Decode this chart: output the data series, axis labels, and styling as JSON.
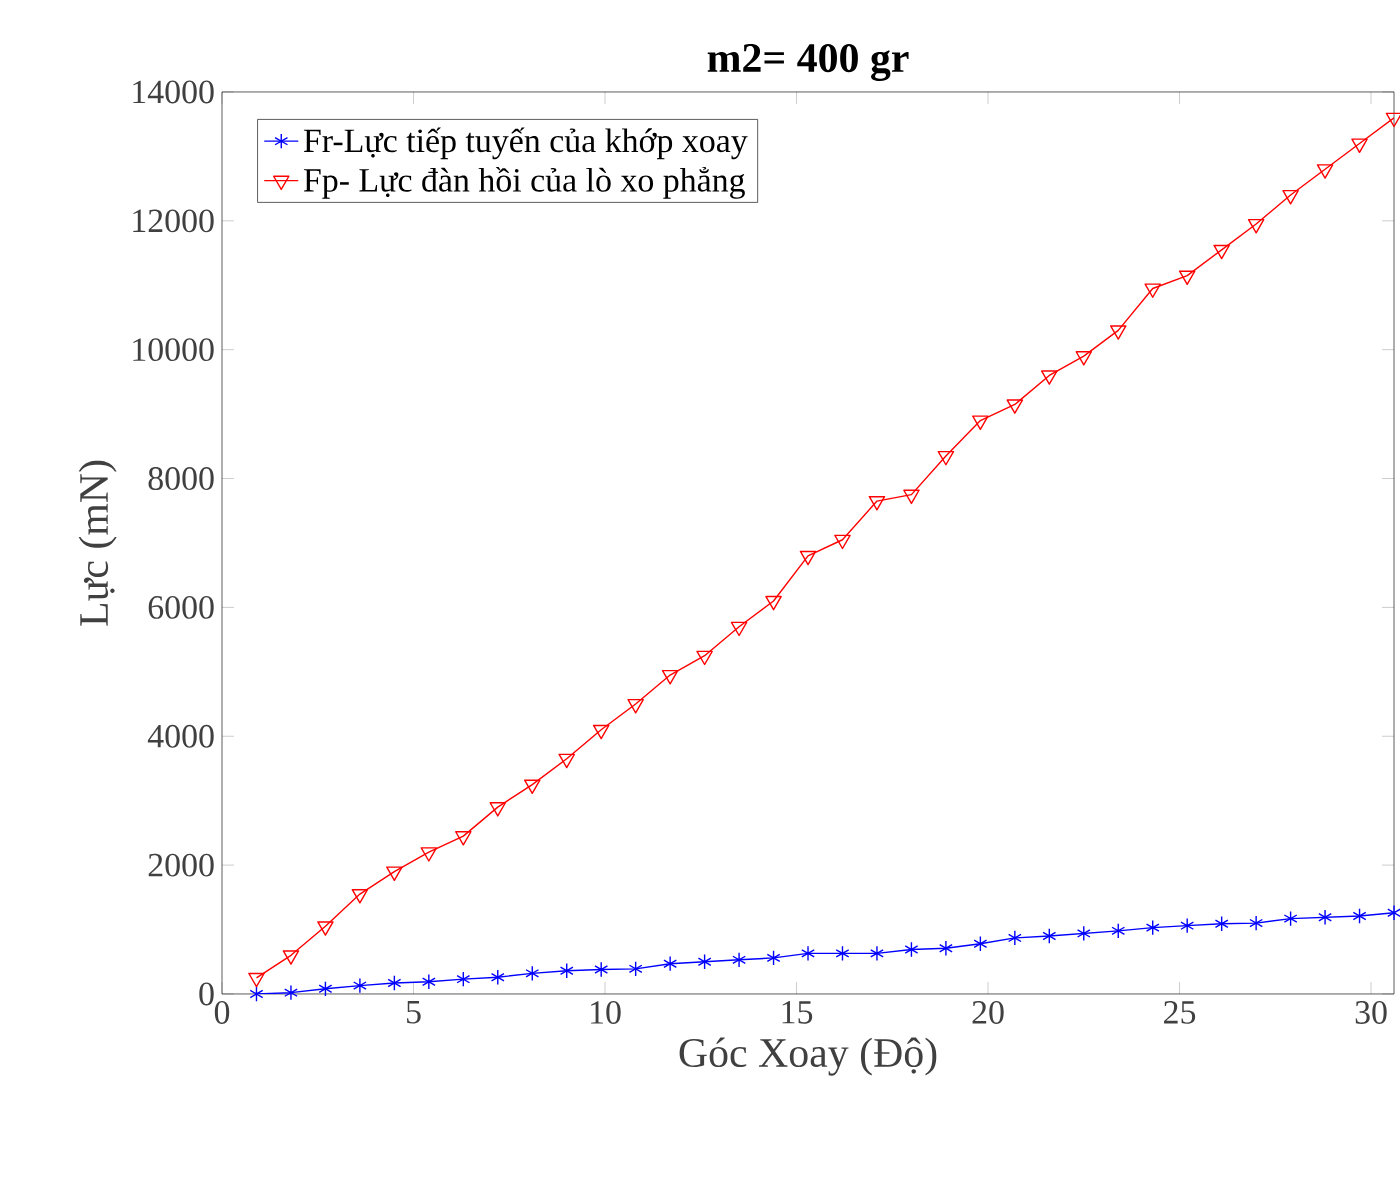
{
  "chart_data": {
    "type": "line",
    "title": "**m2= 400 gr**",
    "xlabel": "Góc Xoay (Độ)",
    "ylabel": "Lực (mN)",
    "x": [
      0.9,
      1.8,
      2.7,
      3.6,
      4.5,
      5.4,
      6.3,
      7.2,
      8.1,
      9.0,
      9.9,
      10.8,
      11.7,
      12.6,
      13.5,
      14.4,
      15.3,
      16.2,
      17.1,
      18.0,
      18.9,
      19.8,
      20.7,
      21.6,
      22.5,
      23.4,
      24.3,
      25.2,
      26.1,
      27.0,
      27.9,
      28.8,
      29.7,
      30.6
    ],
    "series": [
      {
        "name": "Fr-Lực tiếp tuyến của khớp xoay",
        "color": "#0000ff",
        "marker": "cross",
        "values": [
          0,
          20,
          80,
          130,
          170,
          190,
          230,
          260,
          320,
          360,
          380,
          390,
          470,
          500,
          530,
          560,
          630,
          630,
          630,
          690,
          710,
          780,
          870,
          900,
          940,
          980,
          1030,
          1060,
          1090,
          1100,
          1170,
          1190,
          1210,
          1260
        ]
      },
      {
        "name": "Fp- Lực đàn hồi của lò xo phẳng",
        "color": "#ff0000",
        "marker": "triangle",
        "values": [
          250,
          600,
          1050,
          1550,
          1900,
          2200,
          2450,
          2900,
          3250,
          3650,
          4100,
          4500,
          4950,
          5250,
          5700,
          6100,
          6800,
          7050,
          7650,
          7750,
          8350,
          8900,
          9150,
          9600,
          9900,
          10300,
          10950,
          11150,
          11550,
          11950,
          12400,
          12800,
          13200,
          13600
        ]
      }
    ],
    "xlim": [
      0,
      30.6
    ],
    "xticks": [
      0,
      5,
      10,
      15,
      20,
      25,
      30
    ],
    "ylim": [
      0,
      14000
    ],
    "yticks": [
      0,
      2000,
      4000,
      6000,
      8000,
      10000,
      12000,
      14000
    ],
    "legend": "top left",
    "grid": false,
    "line_style": "solid"
  }
}
